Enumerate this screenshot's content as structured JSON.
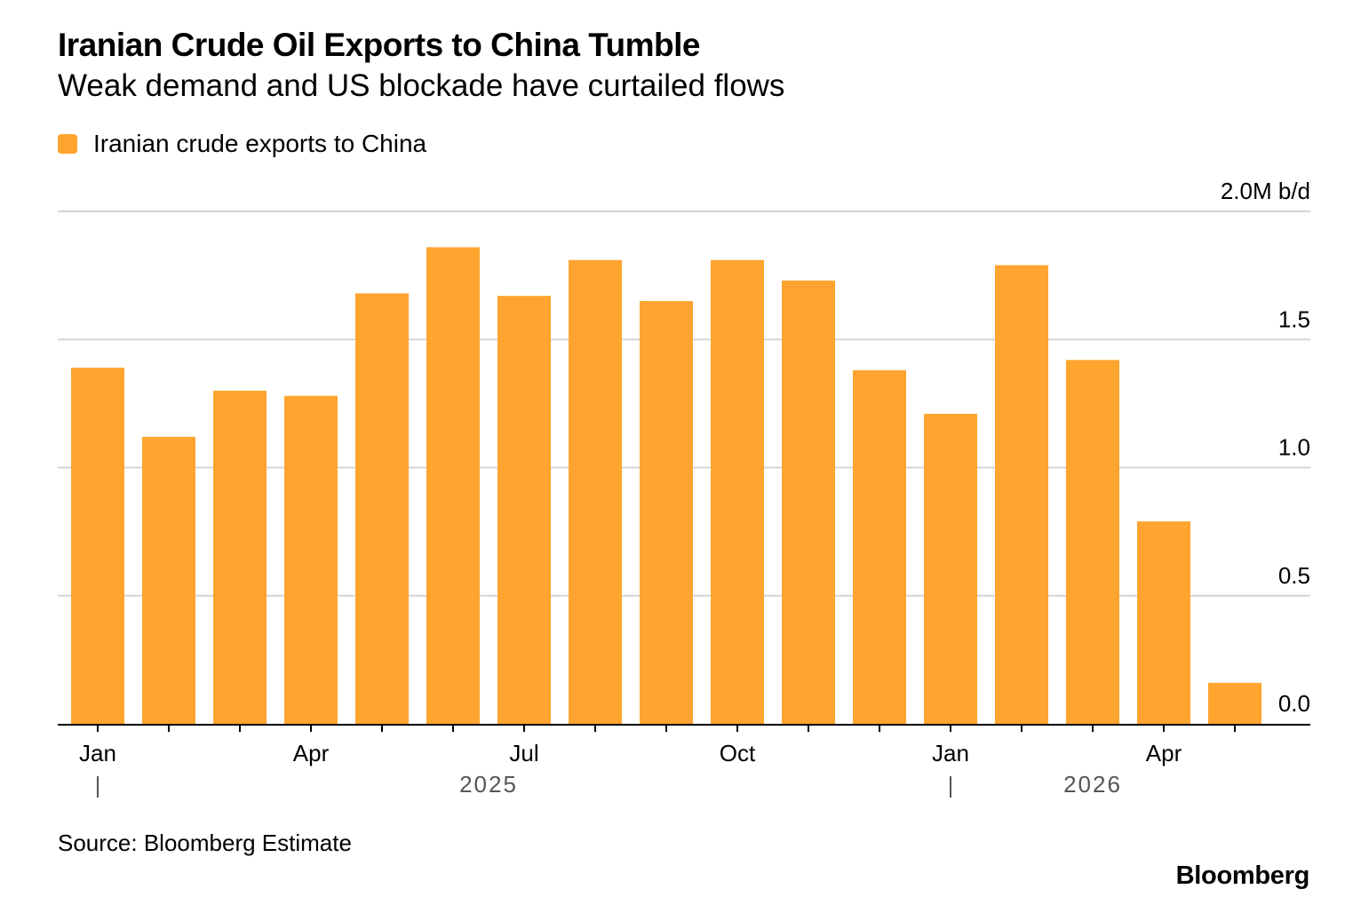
{
  "header": {
    "title": "Iranian Crude Oil Exports to China Tumble",
    "subtitle": "Weak demand and US blockade have curtailed flows"
  },
  "legend": {
    "label": "Iranian crude exports to China",
    "color": "#FFA42E"
  },
  "footer": {
    "source": "Source: Bloomberg Estimate",
    "brand": "Bloomberg"
  },
  "colors": {
    "bar": "#FFA42E",
    "grid": "#D5D5D5",
    "axis": "#000000",
    "year_label": "#555555"
  },
  "chart_data": {
    "type": "bar",
    "title": "Iranian Crude Oil Exports to China Tumble",
    "subtitle": "Weak demand and US blockade have curtailed flows",
    "categories": [
      "2025-01",
      "2025-02",
      "2025-03",
      "2025-04",
      "2025-05",
      "2025-06",
      "2025-07",
      "2025-08",
      "2025-09",
      "2025-10",
      "2025-11",
      "2025-12",
      "2026-01",
      "2026-02",
      "2026-03",
      "2026-04",
      "2026-05"
    ],
    "series": [
      {
        "name": "Iranian crude exports to China",
        "values": [
          1.39,
          1.12,
          1.3,
          1.28,
          1.68,
          1.86,
          1.67,
          1.81,
          1.65,
          1.81,
          1.73,
          1.38,
          1.21,
          1.79,
          1.42,
          0.79,
          0.16
        ]
      }
    ],
    "unit": "M b/d",
    "ylim": [
      0,
      2.0
    ],
    "y_ticks": [
      "0.0",
      "0.5",
      "1.0",
      "1.5",
      "2.0M b/d"
    ],
    "y_tick_values": [
      0,
      0.5,
      1.0,
      1.5,
      2.0
    ],
    "x_tick_labels": [
      {
        "month_index": 0,
        "label": "Jan"
      },
      {
        "month_index": 3,
        "label": "Apr"
      },
      {
        "month_index": 6,
        "label": "Jul"
      },
      {
        "month_index": 9,
        "label": "Oct"
      },
      {
        "month_index": 12,
        "label": "Jan"
      },
      {
        "month_index": 15,
        "label": "Apr"
      }
    ],
    "year_labels": [
      {
        "label": "2025",
        "start_index": 0,
        "end_index": 11
      },
      {
        "label": "2026",
        "start_index": 12,
        "end_index": 16
      }
    ],
    "y_axis_position": "right",
    "legend_position": "top-left",
    "grid": true
  }
}
